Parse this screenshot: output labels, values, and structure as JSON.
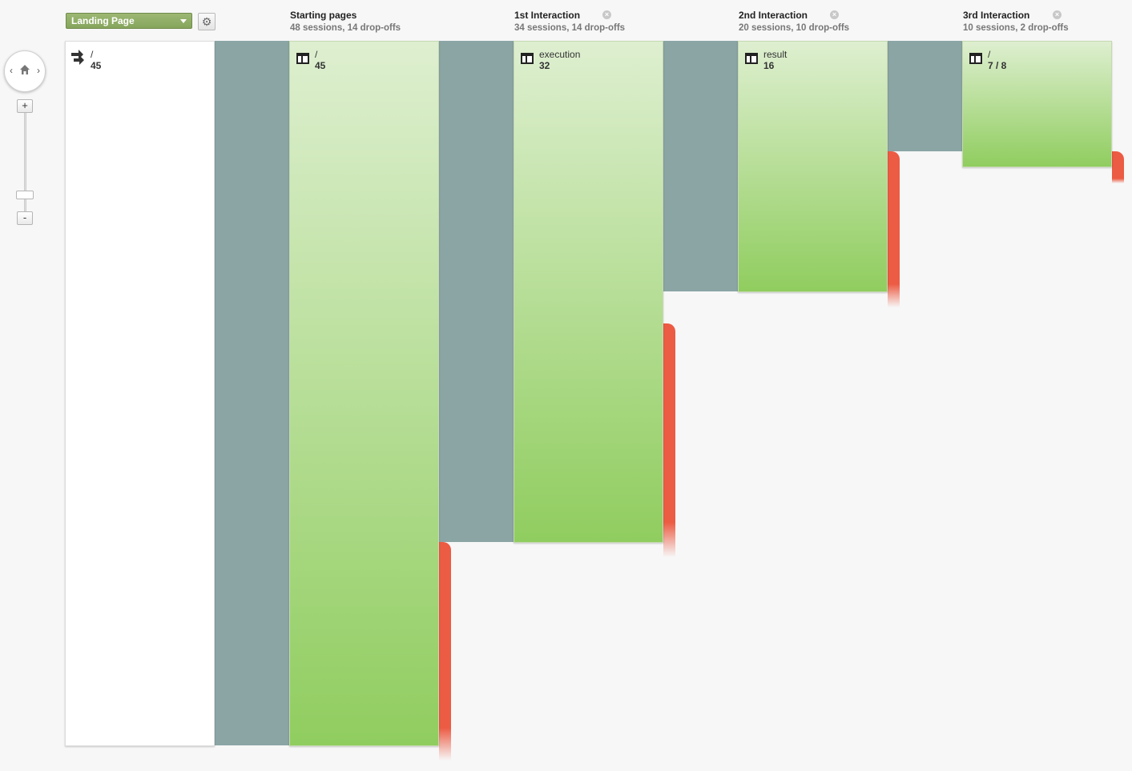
{
  "toolbar": {
    "dimension_selector": "Landing Page",
    "settings_icon": "gear-icon"
  },
  "controls": {
    "zoom_in": "+",
    "zoom_out": "-",
    "nav_left": "‹",
    "nav_right": "›"
  },
  "columns": [
    {
      "title": "Starting pages",
      "subtitle": "48 sessions, 14 drop-offs",
      "closable": false
    },
    {
      "title": "1st Interaction",
      "subtitle": "34 sessions, 14 drop-offs",
      "closable": true
    },
    {
      "title": "2nd Interaction",
      "subtitle": "20 sessions, 10 drop-offs",
      "closable": true
    },
    {
      "title": "3rd Interaction",
      "subtitle": "10 sessions, 2 drop-offs",
      "closable": true
    }
  ],
  "landing_node": {
    "label": "/",
    "count": "45"
  },
  "nodes": [
    {
      "label": "/",
      "count": "45"
    },
    {
      "label": "execution",
      "count": "32"
    },
    {
      "label": "result",
      "count": "16"
    },
    {
      "label": "/",
      "count": "7 / 8"
    }
  ],
  "colors": {
    "node_top": "#deefd0",
    "node_bottom": "#90cd5f",
    "flow": "#8ba5a5",
    "dropoff": "#ec5b43",
    "selector": "#8aa961"
  }
}
